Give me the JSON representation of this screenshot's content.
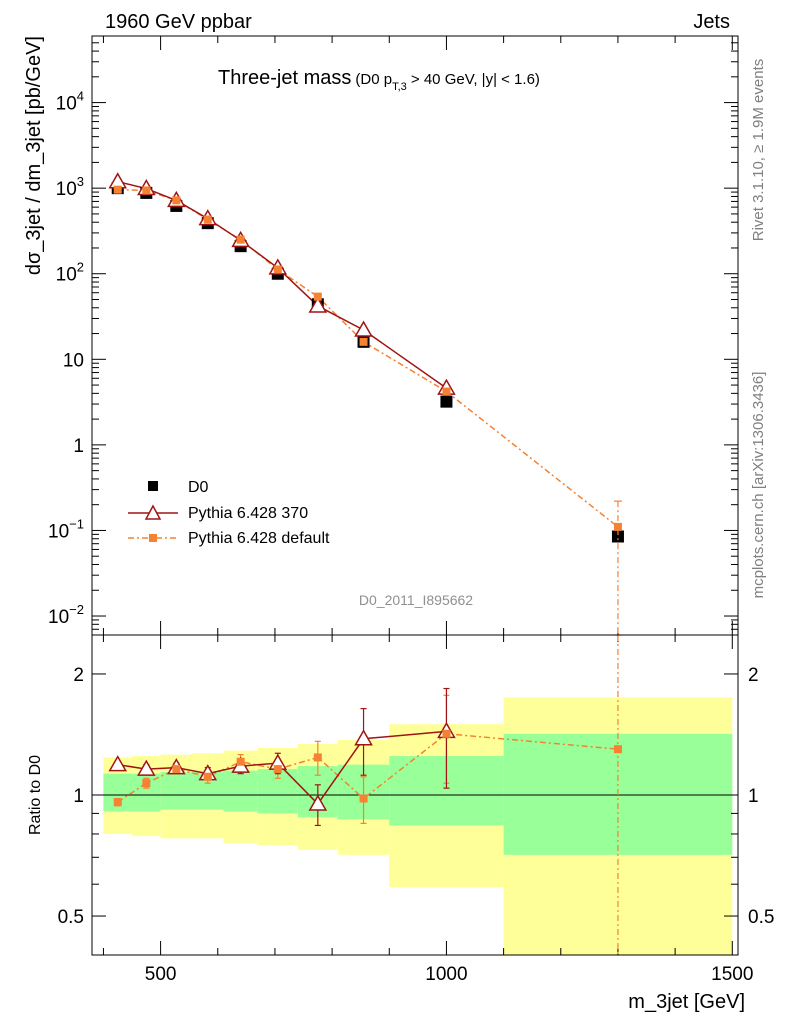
{
  "header": {
    "left": "1960 GeV ppbar",
    "right": "Jets"
  },
  "side_labels": {
    "rivet": "Rivet 3.1.10, ≥ 1.9M events",
    "mcplots": "mcplots.cern.ch [arXiv:1306.3436]"
  },
  "title": {
    "main": "Three-jet mass",
    "sub_open": "(D0 p",
    "sub_subscript": "T,3",
    "sub_rest": " > 40 GeV, |y| < 1.6)"
  },
  "analysis_id": "D0_2011_I895662",
  "legend": {
    "data": "D0",
    "mc370": "Pythia 6.428 370",
    "mcdefault": "Pythia 6.428 default"
  },
  "colors": {
    "data": "#000000",
    "mc370": "#a01414",
    "mcdefault": "#f58232",
    "band_inner": "#99ff99",
    "band_outer": "#ffff99"
  },
  "chart_data": {
    "type": "line",
    "xlabel": "m_3jet [GeV]",
    "ylabel_main": "dσ_3jet / dm_3jet [pb/GeV]",
    "ylabel_ratio": "Ratio to D0",
    "xlim": [
      380,
      1510
    ],
    "ylim_main": [
      0.006,
      60000
    ],
    "ylim_ratio": [
      0.4,
      2.5
    ],
    "yscale": "log",
    "x_ticks": [
      500,
      1000,
      1500
    ],
    "y_ticks_main": [
      {
        "v": 10000,
        "b": "10",
        "e": "4"
      },
      {
        "v": 1000,
        "b": "10",
        "e": "3"
      },
      {
        "v": 100,
        "b": "10",
        "e": "2"
      },
      {
        "v": 10,
        "b": "10",
        "e": ""
      },
      {
        "v": 1,
        "b": "1",
        "e": ""
      },
      {
        "v": 0.1,
        "b": "10",
        "e": "−1"
      },
      {
        "v": 0.01,
        "b": "10",
        "e": "−2"
      }
    ],
    "y_ticks_ratio": [
      {
        "v": 0.5,
        "l": "0.5"
      },
      {
        "v": 1,
        "l": "1"
      },
      {
        "v": 2,
        "l": "2"
      }
    ],
    "bins": [
      [
        400,
        450
      ],
      [
        450,
        500
      ],
      [
        500,
        555
      ],
      [
        555,
        610
      ],
      [
        610,
        670
      ],
      [
        670,
        740
      ],
      [
        740,
        810
      ],
      [
        810,
        900
      ],
      [
        900,
        1100
      ],
      [
        1100,
        1500
      ]
    ],
    "x": [
      425,
      475,
      527.5,
      582.5,
      640,
      705,
      775,
      855,
      1000,
      1300
    ],
    "band_inner": [
      [
        0.91,
        1.13
      ],
      [
        0.91,
        1.13
      ],
      [
        0.92,
        1.14
      ],
      [
        0.92,
        1.14
      ],
      [
        0.91,
        1.15
      ],
      [
        0.9,
        1.16
      ],
      [
        0.88,
        1.18
      ],
      [
        0.87,
        1.19
      ],
      [
        0.84,
        1.25
      ],
      [
        0.71,
        1.42
      ]
    ],
    "band_outer": [
      [
        0.8,
        1.24
      ],
      [
        0.79,
        1.25
      ],
      [
        0.78,
        1.26
      ],
      [
        0.78,
        1.27
      ],
      [
        0.76,
        1.29
      ],
      [
        0.75,
        1.31
      ],
      [
        0.73,
        1.34
      ],
      [
        0.71,
        1.37
      ],
      [
        0.59,
        1.5
      ],
      [
        0.38,
        1.75
      ]
    ],
    "series": [
      {
        "name": "D0",
        "values": [
          1000,
          880,
          620,
          390,
          210,
          100,
          44,
          16,
          3.2,
          0.085
        ]
      },
      {
        "name": "Pythia 6.428 370",
        "values": [
          1190,
          990,
          720,
          440,
          245,
          117,
          42,
          22,
          4.6,
          null
        ],
        "ratio": [
          1.19,
          1.16,
          1.17,
          1.13,
          1.18,
          1.2,
          0.95,
          1.38,
          1.44,
          null
        ],
        "ratio_err": [
          0.02,
          0.03,
          0.03,
          0.04,
          0.05,
          0.07,
          0.11,
          0.26,
          0.4,
          null
        ]
      },
      {
        "name": "Pythia 6.428 default",
        "values": [
          960,
          940,
          720,
          430,
          250,
          112,
          54,
          16,
          4.2,
          0.11
        ],
        "ratio": [
          0.96,
          1.07,
          1.16,
          1.11,
          1.21,
          1.16,
          1.24,
          0.98,
          1.42,
          1.3
        ],
        "ratio_err": [
          0.02,
          0.03,
          0.03,
          0.04,
          0.05,
          0.06,
          0.12,
          0.13,
          0.35,
          1.2
        ]
      }
    ]
  }
}
